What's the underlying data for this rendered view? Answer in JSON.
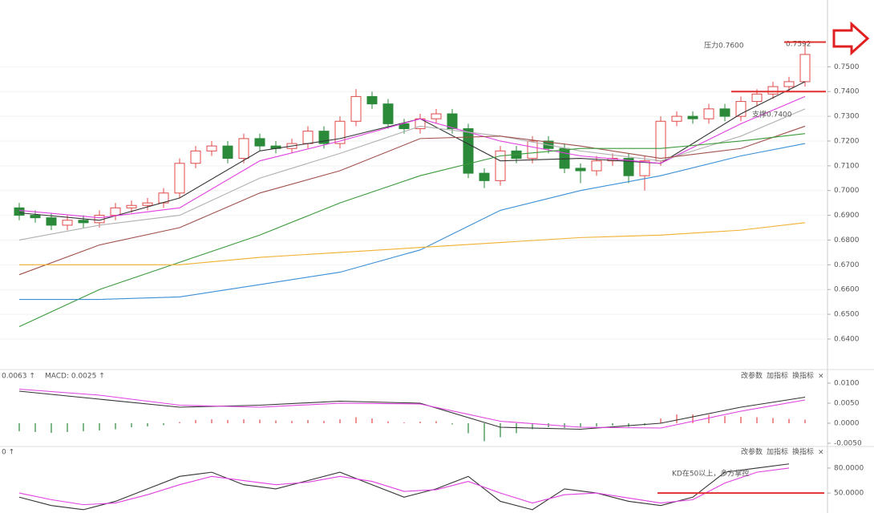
{
  "chart_data": [
    {
      "type": "candlestick",
      "open": [
        0.693,
        0.69,
        0.689,
        0.686,
        0.688,
        0.687,
        0.69,
        0.693,
        0.694,
        0.695,
        0.699,
        0.711,
        0.716,
        0.718,
        0.713,
        0.721,
        0.718,
        0.717,
        0.719,
        0.724,
        0.719,
        0.728,
        0.738,
        0.735,
        0.727,
        0.725,
        0.729,
        0.731,
        0.725,
        0.707,
        0.704,
        0.716,
        0.713,
        0.72,
        0.717,
        0.709,
        0.708,
        0.712,
        0.713,
        0.706,
        0.712,
        0.728,
        0.73,
        0.729,
        0.733,
        0.73,
        0.736,
        0.739,
        0.742,
        0.744
      ],
      "high": [
        0.695,
        0.692,
        0.691,
        0.69,
        0.69,
        0.692,
        0.695,
        0.696,
        0.697,
        0.701,
        0.713,
        0.718,
        0.72,
        0.72,
        0.723,
        0.723,
        0.72,
        0.721,
        0.726,
        0.726,
        0.73,
        0.741,
        0.74,
        0.737,
        0.729,
        0.731,
        0.733,
        0.733,
        0.727,
        0.709,
        0.718,
        0.718,
        0.722,
        0.722,
        0.719,
        0.711,
        0.714,
        0.715,
        0.715,
        0.714,
        0.73,
        0.732,
        0.732,
        0.735,
        0.735,
        0.738,
        0.741,
        0.744,
        0.746,
        0.7592
      ],
      "low": [
        0.688,
        0.687,
        0.684,
        0.684,
        0.685,
        0.685,
        0.688,
        0.691,
        0.692,
        0.693,
        0.697,
        0.709,
        0.714,
        0.711,
        0.711,
        0.716,
        0.715,
        0.715,
        0.717,
        0.717,
        0.717,
        0.726,
        0.733,
        0.725,
        0.723,
        0.723,
        0.727,
        0.723,
        0.705,
        0.701,
        0.702,
        0.711,
        0.711,
        0.715,
        0.707,
        0.703,
        0.706,
        0.71,
        0.703,
        0.7,
        0.71,
        0.726,
        0.727,
        0.727,
        0.728,
        0.728,
        0.734,
        0.737,
        0.74,
        0.742
      ],
      "close": [
        0.69,
        0.689,
        0.686,
        0.688,
        0.687,
        0.69,
        0.693,
        0.694,
        0.695,
        0.699,
        0.711,
        0.716,
        0.718,
        0.713,
        0.721,
        0.718,
        0.717,
        0.719,
        0.724,
        0.719,
        0.728,
        0.738,
        0.735,
        0.727,
        0.725,
        0.729,
        0.731,
        0.725,
        0.707,
        0.704,
        0.716,
        0.713,
        0.72,
        0.717,
        0.709,
        0.708,
        0.712,
        0.713,
        0.706,
        0.712,
        0.728,
        0.73,
        0.729,
        0.733,
        0.73,
        0.736,
        0.739,
        0.742,
        0.744,
        0.755
      ],
      "up_color": "#e04a4a",
      "down_color": "#2a8a3a",
      "series": [
        {
          "color": "#333333",
          "x": [
            0,
            5,
            10,
            15,
            20,
            25,
            30,
            35,
            40,
            45,
            49
          ],
          "values": [
            0.691,
            0.688,
            0.697,
            0.716,
            0.721,
            0.729,
            0.712,
            0.713,
            0.711,
            0.731,
            0.744
          ]
        },
        {
          "color": "#e040e0",
          "x": [
            0,
            5,
            10,
            15,
            20,
            25,
            30,
            35,
            40,
            45,
            49
          ],
          "values": [
            0.692,
            0.689,
            0.693,
            0.712,
            0.72,
            0.729,
            0.72,
            0.714,
            0.711,
            0.727,
            0.738
          ]
        },
        {
          "color": "#b0b0b0",
          "x": [
            0,
            5,
            10,
            15,
            20,
            25,
            30,
            35,
            40,
            45,
            49
          ],
          "values": [
            0.68,
            0.686,
            0.69,
            0.705,
            0.715,
            0.726,
            0.722,
            0.716,
            0.712,
            0.722,
            0.733
          ]
        },
        {
          "color": "#a0504a",
          "x": [
            0,
            5,
            10,
            15,
            20,
            25,
            30,
            35,
            40,
            45,
            49
          ],
          "values": [
            0.666,
            0.678,
            0.685,
            0.699,
            0.708,
            0.721,
            0.722,
            0.718,
            0.713,
            0.717,
            0.726
          ]
        },
        {
          "color": "#3a9a3a",
          "x": [
            0,
            5,
            10,
            15,
            20,
            25,
            30,
            35,
            40,
            45,
            49
          ],
          "values": [
            0.645,
            0.66,
            0.671,
            0.682,
            0.695,
            0.706,
            0.714,
            0.717,
            0.717,
            0.72,
            0.723
          ]
        },
        {
          "color": "#3b8fd6",
          "x": [
            0,
            5,
            10,
            15,
            20,
            25,
            30,
            35,
            40,
            45,
            49
          ],
          "values": [
            0.656,
            0.656,
            0.657,
            0.662,
            0.667,
            0.676,
            0.692,
            0.7,
            0.706,
            0.714,
            0.719
          ]
        },
        {
          "color": "#f0b030",
          "x": [
            0,
            5,
            10,
            15,
            20,
            25,
            30,
            35,
            40,
            45,
            49
          ],
          "values": [
            0.67,
            0.67,
            0.67,
            0.673,
            0.675,
            0.677,
            0.679,
            0.681,
            0.682,
            0.684,
            0.687
          ]
        }
      ],
      "ylim": [
        0.628,
        0.777
      ],
      "yticks": [
        {
          "value": 0.64,
          "label": "0.6400"
        },
        {
          "value": 0.65,
          "label": "0.6500"
        },
        {
          "value": 0.66,
          "label": "0.6600"
        },
        {
          "value": 0.67,
          "label": "0.6700"
        },
        {
          "value": 0.68,
          "label": "0.6800"
        },
        {
          "value": 0.69,
          "label": "0.6900"
        },
        {
          "value": 0.7,
          "label": "0.7000"
        },
        {
          "value": 0.71,
          "label": "0.7100"
        },
        {
          "value": 0.72,
          "label": "0.7200"
        },
        {
          "value": 0.73,
          "label": "0.7300"
        },
        {
          "value": 0.74,
          "label": "0.7400"
        },
        {
          "value": 0.75,
          "label": "0.7500"
        }
      ],
      "grid": true,
      "high_label": {
        "value": 0.7592,
        "label": "0.7592"
      },
      "annotations": [
        {
          "text": "压力0.7600",
          "value": 0.76,
          "color": "#e03030"
        },
        {
          "text": "支撑0.7400",
          "value": 0.74,
          "color": "#e03030"
        }
      ]
    },
    {
      "type": "bar",
      "values": [
        -0.002,
        -0.0022,
        -0.0024,
        -0.0022,
        -0.002,
        -0.0018,
        -0.0015,
        -0.001,
        -0.0008,
        -0.0005,
        0.0003,
        0.0008,
        0.001,
        0.0008,
        0.001,
        0.0009,
        0.0007,
        0.0006,
        0.0008,
        0.0006,
        0.001,
        0.0015,
        0.0012,
        0.0005,
        0.0002,
        0.0004,
        0.0005,
        -0.0003,
        -0.0025,
        -0.0045,
        -0.0035,
        -0.0025,
        -0.0015,
        -0.001,
        -0.0012,
        -0.0011,
        -0.0008,
        -0.0006,
        -0.0009,
        -0.0005,
        0.0012,
        0.0022,
        0.0022,
        0.0021,
        0.0018,
        0.0016,
        0.0015,
        0.0013,
        0.0011,
        0.0009
      ],
      "up_color": "#e04a4a",
      "down_color": "#2a8a3a",
      "series": [
        {
          "color": "#333333",
          "x": [
            0,
            5,
            10,
            15,
            20,
            25,
            30,
            35,
            40,
            45,
            49
          ],
          "values": [
            0.008,
            0.006,
            0.004,
            0.0045,
            0.0055,
            0.005,
            -0.001,
            -0.0015,
            0,
            0.004,
            0.0065
          ]
        },
        {
          "color": "#e040e0",
          "x": [
            0,
            5,
            10,
            15,
            20,
            25,
            30,
            35,
            40,
            45,
            49
          ],
          "values": [
            0.0085,
            0.007,
            0.0045,
            0.004,
            0.005,
            0.0048,
            0.0005,
            -0.001,
            -0.0012,
            0.003,
            0.0058
          ]
        }
      ],
      "ylim": [
        -0.0056,
        0.013
      ],
      "yticks": [
        {
          "value": -0.005,
          "label": "-0.0050"
        },
        {
          "value": 0,
          "label": "0.0000"
        },
        {
          "value": 0.005,
          "label": "0.0050"
        },
        {
          "value": 0.01,
          "label": "0.0100"
        }
      ],
      "readouts": [
        {
          "text": "0.0063 ↑",
          "color": "#e040e0"
        },
        {
          "text": "MACD: 0.0025 ↑",
          "color": "#555555"
        }
      ],
      "toolbar": [
        "改参数",
        "加指标",
        "换指标",
        "×"
      ]
    },
    {
      "type": "line",
      "series": [
        {
          "color": "#333333",
          "x": [
            0,
            2,
            4,
            6,
            8,
            10,
            12,
            14,
            16,
            18,
            20,
            22,
            24,
            26,
            28,
            30,
            32,
            34,
            36,
            38,
            40,
            42,
            44,
            46,
            48
          ],
          "values": [
            45,
            35,
            30,
            40,
            55,
            70,
            75,
            60,
            55,
            65,
            75,
            60,
            45,
            55,
            70,
            40,
            30,
            55,
            50,
            40,
            35,
            45,
            75,
            80,
            85
          ]
        },
        {
          "color": "#e040e0",
          "x": [
            0,
            2,
            4,
            6,
            8,
            10,
            12,
            14,
            16,
            18,
            20,
            22,
            24,
            26,
            28,
            30,
            32,
            34,
            36,
            38,
            40,
            42,
            44,
            46,
            48
          ],
          "values": [
            50,
            42,
            36,
            38,
            48,
            60,
            70,
            65,
            60,
            63,
            70,
            64,
            52,
            54,
            64,
            50,
            38,
            48,
            50,
            44,
            38,
            42,
            62,
            75,
            80
          ]
        }
      ],
      "ylim": [
        26,
        105
      ],
      "yticks": [
        {
          "value": 50,
          "label": "50.0000"
        },
        {
          "value": 80,
          "label": "80.0000"
        }
      ],
      "readouts": [
        {
          "text": "0 ↑",
          "color": "#e040e0"
        }
      ],
      "toolbar": [
        "改参数",
        "加指标",
        "换指标",
        "×"
      ],
      "annotations": [
        {
          "text": "KD在50以上，多方掌控",
          "value": 50,
          "color": "#e03030"
        }
      ]
    }
  ]
}
